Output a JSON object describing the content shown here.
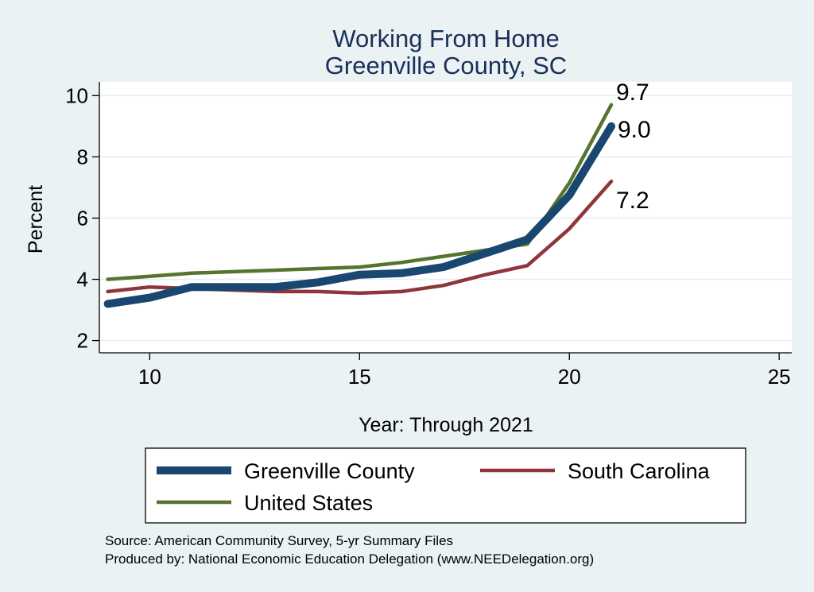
{
  "chart_data": {
    "type": "line",
    "title": "Working From Home",
    "subtitle": "Greenville County, SC",
    "xlabel": "Year: Through 2021",
    "ylabel": "Percent",
    "xlim": [
      8.8,
      25.3
    ],
    "ylim": [
      1.6,
      10.45
    ],
    "xticks": [
      "10",
      "15",
      "20",
      "25"
    ],
    "yticks": [
      "2",
      "4",
      "6",
      "8",
      "10"
    ],
    "grid": true,
    "series": [
      {
        "name": "Greenville County",
        "color": "#1a476f",
        "x": [
          9,
          10,
          11,
          12,
          13,
          14,
          15,
          16,
          17,
          18,
          19,
          20,
          21
        ],
        "y": [
          3.2,
          3.4,
          3.75,
          3.75,
          3.75,
          3.9,
          4.15,
          4.2,
          4.4,
          4.85,
          5.3,
          6.75,
          9.0
        ],
        "end_label": "9.0"
      },
      {
        "name": "South Carolina",
        "color": "#90353b",
        "x": [
          9,
          10,
          11,
          12,
          13,
          14,
          15,
          16,
          17,
          18,
          19,
          20,
          21
        ],
        "y": [
          3.6,
          3.75,
          3.7,
          3.65,
          3.6,
          3.6,
          3.55,
          3.6,
          3.8,
          4.15,
          4.45,
          5.65,
          7.2
        ],
        "end_label": "7.2"
      },
      {
        "name": "United States",
        "color": "#55752f",
        "x": [
          9,
          10,
          11,
          12,
          13,
          14,
          15,
          16,
          17,
          18,
          19,
          20,
          21
        ],
        "y": [
          4.0,
          4.1,
          4.2,
          4.25,
          4.3,
          4.35,
          4.4,
          4.55,
          4.75,
          4.95,
          5.15,
          7.15,
          9.7
        ],
        "end_label": "9.7"
      }
    ],
    "legend": {
      "position": "bottom",
      "entries": [
        "Greenville County",
        "South Carolina",
        "United States"
      ]
    },
    "notes": [
      "Source: American Community Survey, 5-yr Summary Files",
      "Produced by: National Economic Education Delegation (www.NEEDelegation.org)"
    ]
  }
}
